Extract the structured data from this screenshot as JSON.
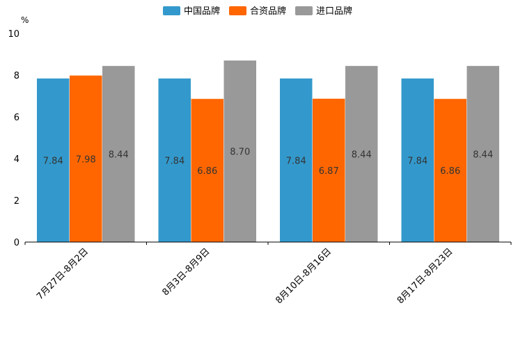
{
  "chart_data": {
    "type": "bar",
    "title": "",
    "xlabel": "",
    "ylabel": "%",
    "ylim": [
      0,
      10
    ],
    "yticks": [
      0,
      2,
      4,
      6,
      8,
      10
    ],
    "categories": [
      "7月27日-8月2日",
      "8月3日-8月9日",
      "8月10日-8月16日",
      "8月17日-8月23日"
    ],
    "series": [
      {
        "name": "中国品牌",
        "color": "#3399cc",
        "values": [
          7.84,
          7.84,
          7.84,
          7.84
        ],
        "labels": [
          "7.84",
          "7.84",
          "7.84",
          "7.84"
        ]
      },
      {
        "name": "合资品牌",
        "color": "#ff6600",
        "values": [
          7.98,
          6.86,
          6.87,
          6.86
        ],
        "labels": [
          "7.98",
          "6.86",
          "6.87",
          "6.86"
        ]
      },
      {
        "name": "进口品牌",
        "color": "#999999",
        "values": [
          8.44,
          8.7,
          8.44,
          8.44
        ],
        "labels": [
          "8.44",
          "8.70",
          "8.44",
          "8.44"
        ]
      }
    ],
    "legend": "top-center"
  }
}
